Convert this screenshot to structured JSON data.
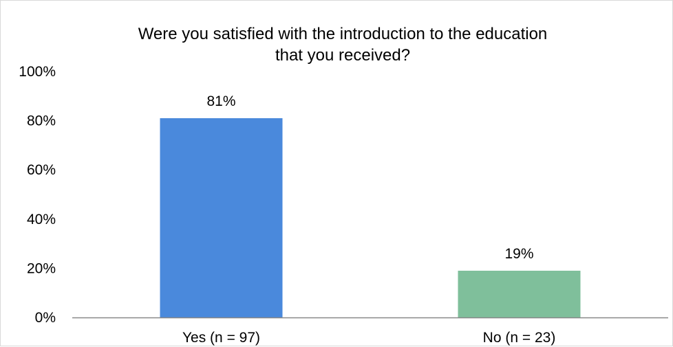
{
  "chart_data": {
    "type": "bar",
    "title_lines": [
      "Were you satisfied with the introduction to the education",
      "that you received?"
    ],
    "categories": [
      "Yes (n = 97)",
      "No (n = 23)"
    ],
    "values": [
      81,
      19
    ],
    "value_labels": [
      "81%",
      "19%"
    ],
    "colors": [
      "#4a89dc",
      "#7fbf9b"
    ],
    "ylim": [
      0,
      100
    ],
    "yticks": [
      0,
      20,
      40,
      60,
      80,
      100
    ],
    "ytick_labels": [
      "0%",
      "20%",
      "40%",
      "60%",
      "80%",
      "100%"
    ],
    "xlabel": "",
    "ylabel": "",
    "grid": false,
    "legend": "none",
    "axis_color": "#888888"
  }
}
